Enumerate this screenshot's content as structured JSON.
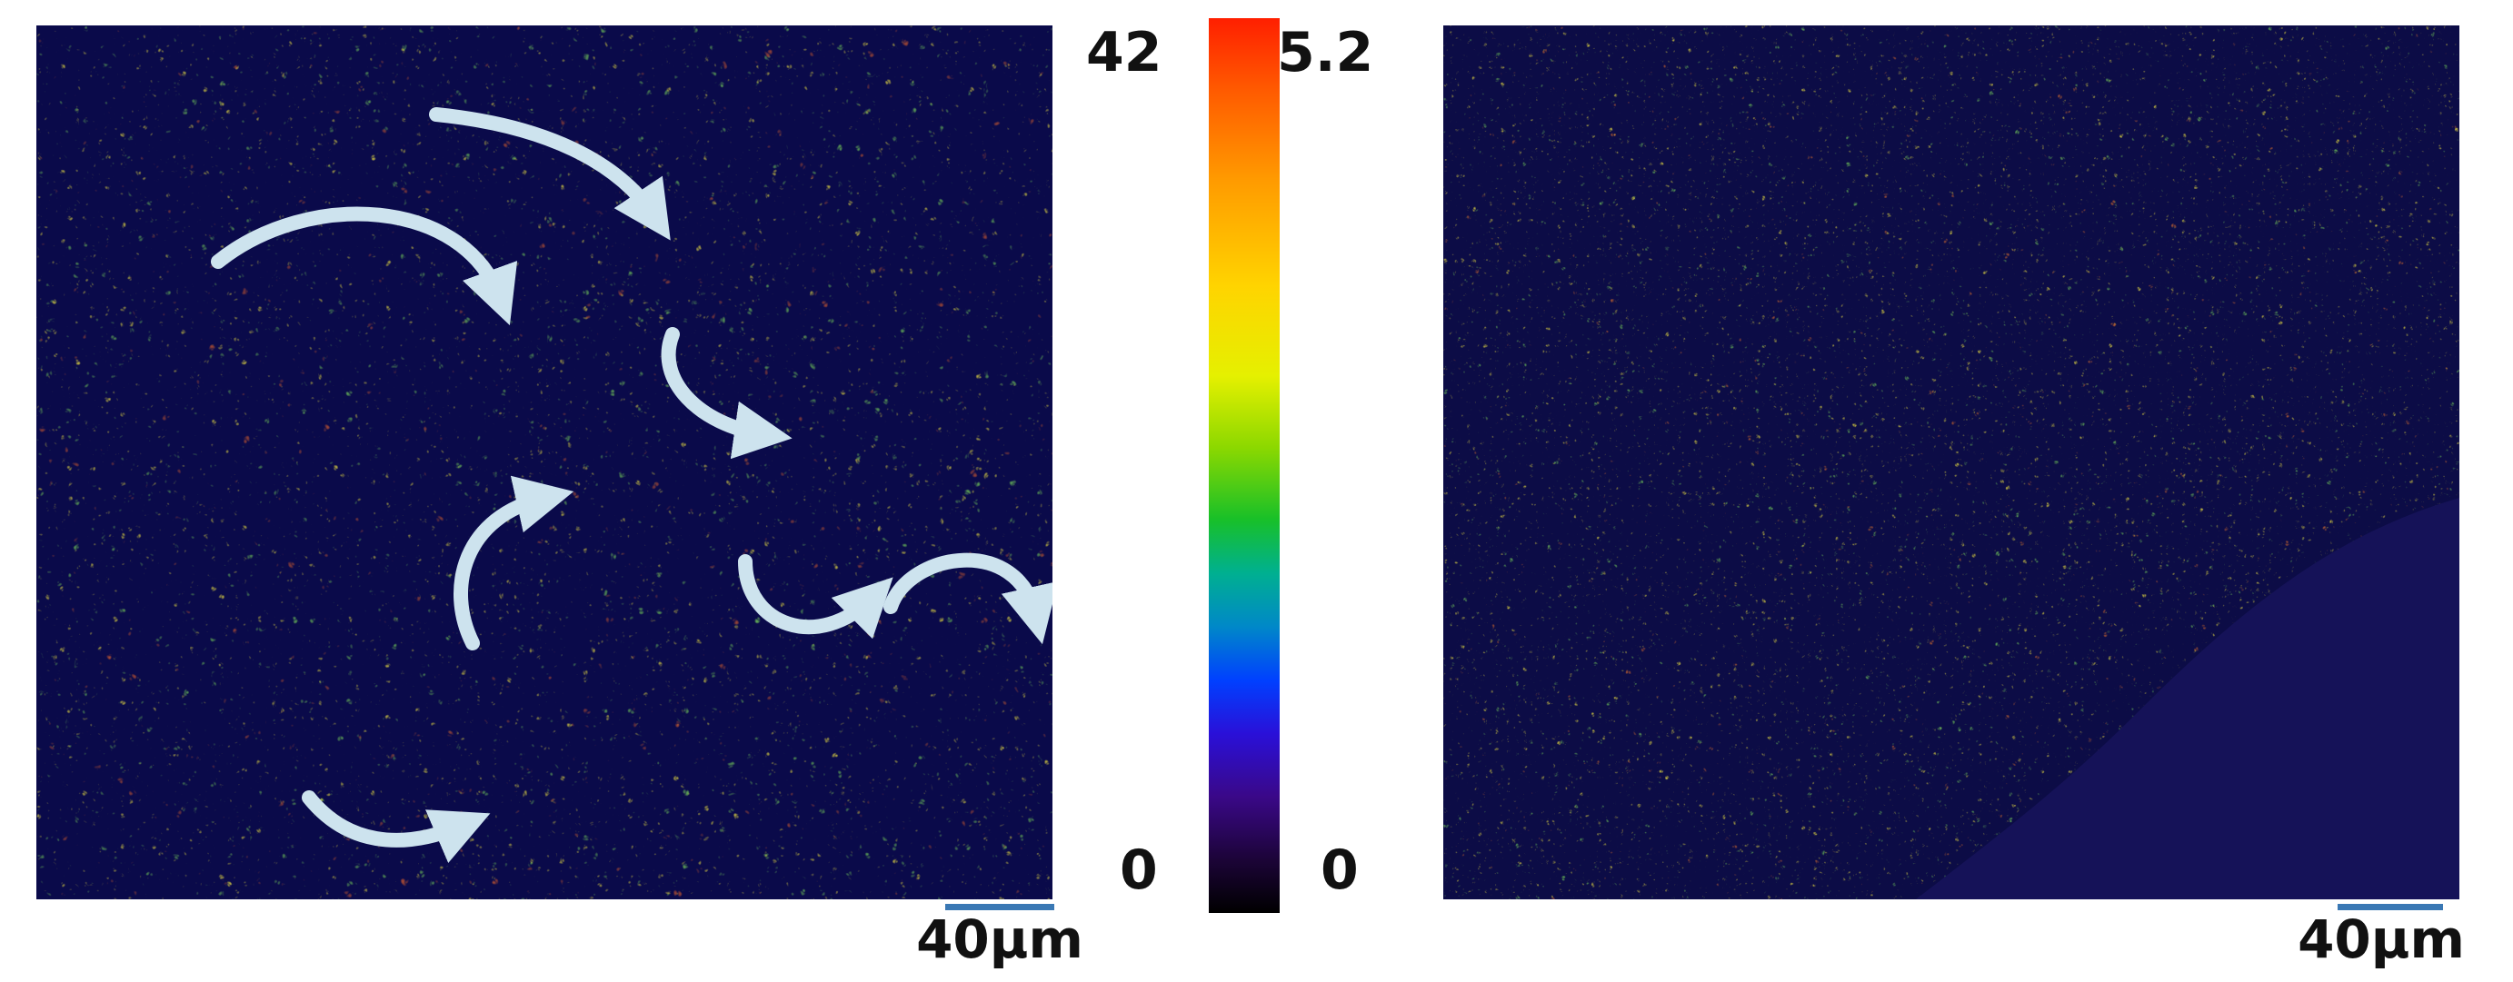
{
  "colorbar": {
    "left_max": "42",
    "left_min": "0",
    "right_max": "5.2",
    "right_min": "0"
  },
  "panels": {
    "left": {
      "scale_label": "40μm"
    },
    "right": {
      "scale_label": "40μm"
    }
  }
}
